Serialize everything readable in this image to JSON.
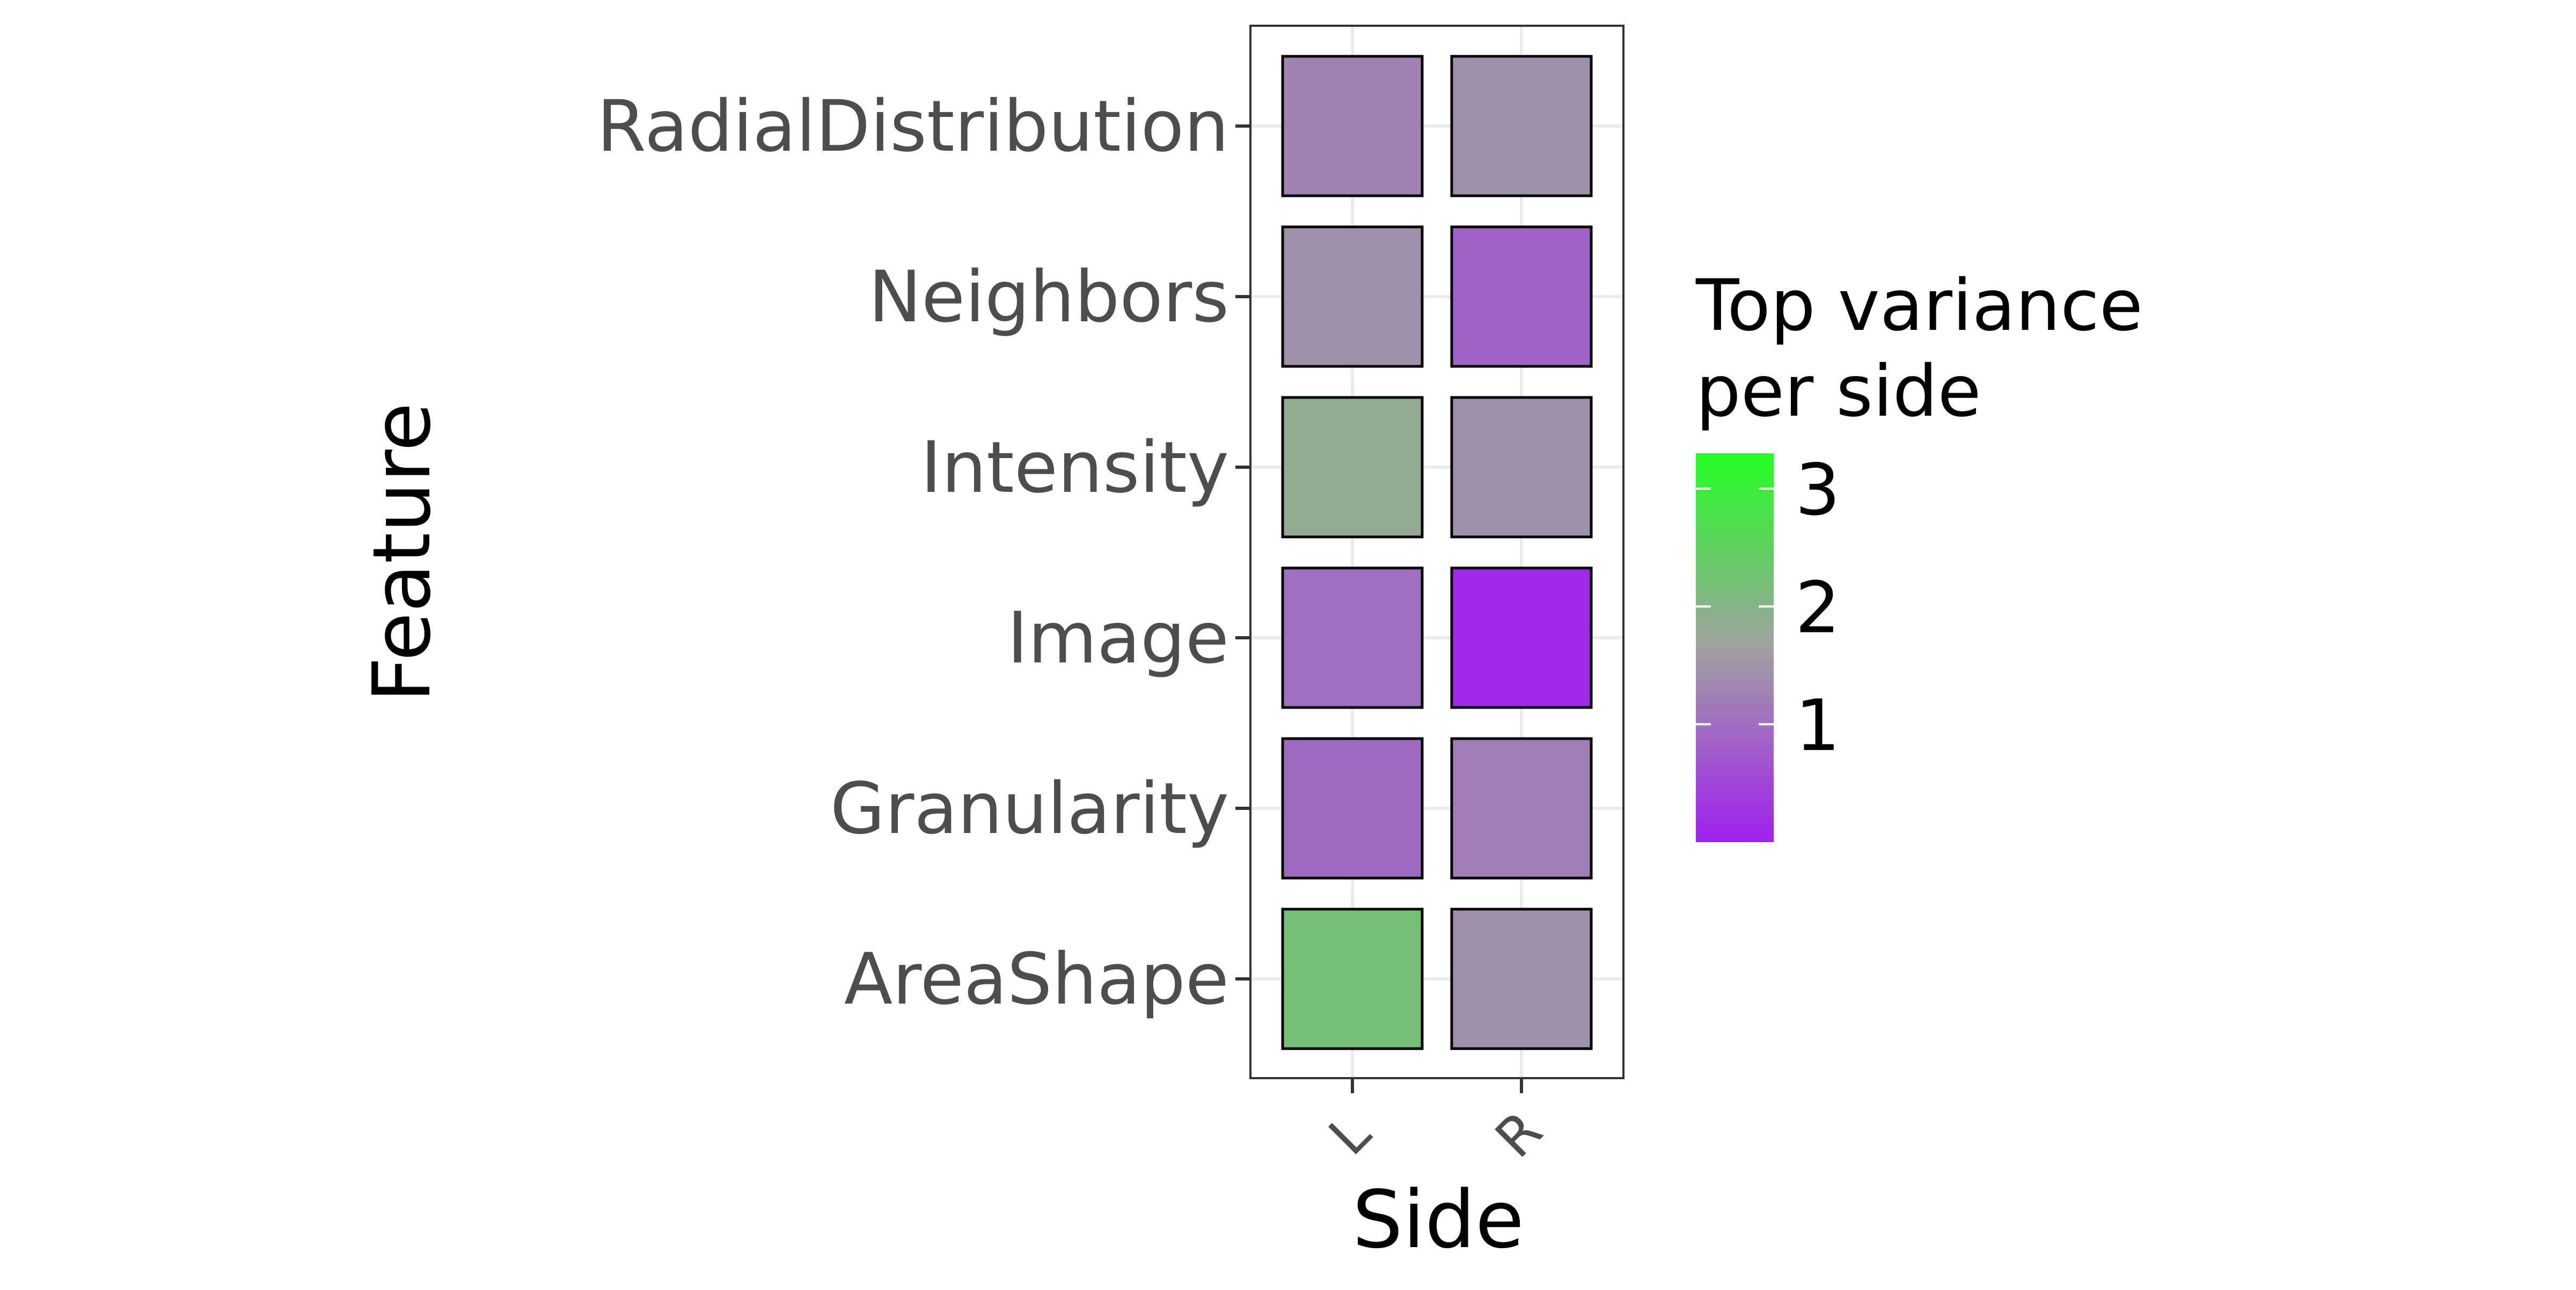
{
  "chart_data": {
    "type": "heatmap",
    "x_categories": [
      "L",
      "R"
    ],
    "y_categories": [
      "AreaShape",
      "Granularity",
      "Image",
      "Intensity",
      "Neighbors",
      "RadialDistribution"
    ],
    "values": [
      {
        "y": "AreaShape",
        "x": "L",
        "value": 2.2
      },
      {
        "y": "AreaShape",
        "x": "R",
        "value": 1.45
      },
      {
        "y": "Granularity",
        "x": "L",
        "value": 0.95
      },
      {
        "y": "Granularity",
        "x": "R",
        "value": 1.2
      },
      {
        "y": "Image",
        "x": "L",
        "value": 1.0
      },
      {
        "y": "Image",
        "x": "R",
        "value": 0.1
      },
      {
        "y": "Intensity",
        "x": "L",
        "value": 1.85
      },
      {
        "y": "Intensity",
        "x": "R",
        "value": 1.45
      },
      {
        "y": "Neighbors",
        "x": "L",
        "value": 1.45
      },
      {
        "y": "Neighbors",
        "x": "R",
        "value": 0.85
      },
      {
        "y": "RadialDistribution",
        "x": "L",
        "value": 1.25
      },
      {
        "y": "RadialDistribution",
        "x": "R",
        "value": 1.45
      }
    ],
    "xlabel": "Side",
    "ylabel": "Feature",
    "legend": {
      "title_lines": [
        "Top variance",
        "per side"
      ],
      "ticks": [
        1,
        2,
        3
      ],
      "range": [
        0,
        3.3
      ],
      "placement": "right",
      "colors": {
        "low": "#a020f0",
        "mid": "#a0a0a0",
        "high": "#22ff22"
      }
    },
    "grid": true
  }
}
